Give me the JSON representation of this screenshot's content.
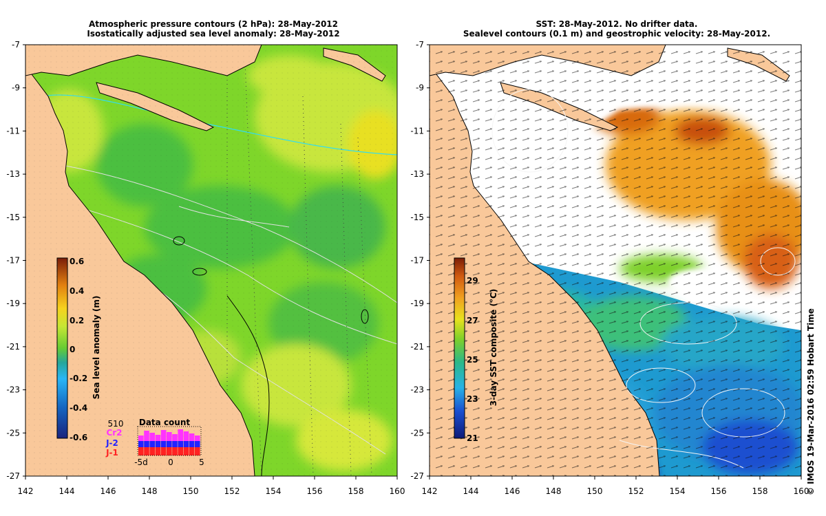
{
  "left_panel": {
    "title_line1": "Atmospheric pressure contours (2 hPa): 28-May-2012",
    "title_line2": "Isostatically adjusted sea level anomaly: 28-May-2012",
    "x_ticks": [
      "142",
      "144",
      "146",
      "148",
      "150",
      "152",
      "154",
      "156",
      "158",
      "160"
    ],
    "y_ticks": [
      "-7",
      "-9",
      "-11",
      "-13",
      "-15",
      "-17",
      "-19",
      "-21",
      "-23",
      "-25",
      "-27"
    ],
    "colorbar": {
      "label": "Sea level anomaly (m)",
      "ticks": [
        "0.6",
        "0.4",
        "0.2",
        "0",
        "-0.2",
        "-0.4",
        "-0.6"
      ],
      "range": [
        -0.6,
        0.6
      ]
    },
    "data_count": {
      "title": "Data count",
      "max_label": "510",
      "missions": [
        "Cr2",
        "J-2",
        "J-1"
      ],
      "mission_colors": [
        "#ff33ff",
        "#2222ff",
        "#ff2222"
      ],
      "x_labels": [
        "-5d",
        "0",
        "5"
      ]
    }
  },
  "right_panel": {
    "title_line1": "SST: 28-May-2012. No drifter data.",
    "title_line2": "Sealevel contours (0.1 m) and geostrophic velocity: 28-May-2012.",
    "x_ticks": [
      "142",
      "144",
      "146",
      "148",
      "150",
      "152",
      "154",
      "156",
      "158",
      "160"
    ],
    "y_ticks": [
      "-7",
      "-9",
      "-11",
      "-13",
      "-15",
      "-17",
      "-19",
      "-21",
      "-23",
      "-25",
      "-27"
    ],
    "colorbar": {
      "label": "3-day SST composite (°C)",
      "ticks": [
        "29",
        "27",
        "25",
        "23",
        "21"
      ],
      "range": [
        21,
        30
      ]
    }
  },
  "credit": "© IMOS 19-Mar-2016 02:59 Hobart Time",
  "colors": {
    "land": "#f9c89a",
    "sla_positive": "#c8e63c",
    "sla_zero": "#7ed62a",
    "sla_negative": "#4cbf40",
    "sst_warm": "#f0a020",
    "sst_cool": "#1a80d0",
    "cloud": "#ffffff"
  }
}
